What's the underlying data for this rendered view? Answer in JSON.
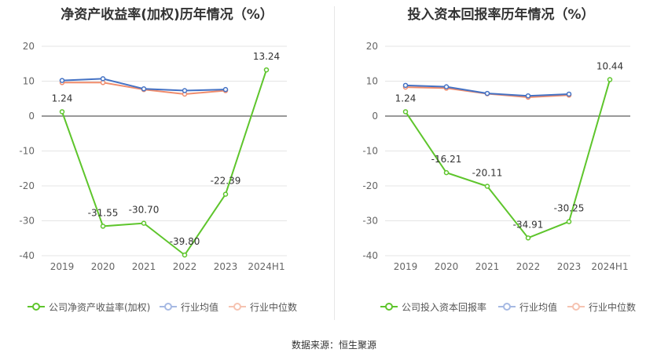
{
  "source_label": "数据来源：恒生聚源",
  "chart_data": [
    {
      "type": "line",
      "title": "净资产收益率(加权)历年情况（%）",
      "categories": [
        "2019",
        "2020",
        "2021",
        "2022",
        "2023",
        "2024H1"
      ],
      "ylim": [
        -40,
        20
      ],
      "yticks": [
        20,
        10,
        0,
        -10,
        -20,
        -30,
        -40
      ],
      "grid": true,
      "legend_position": "bottom",
      "series": [
        {
          "name": "公司净资产收益率(加权)",
          "color": "#5ec52c",
          "values": [
            1.24,
            -31.55,
            -30.7,
            -39.8,
            -22.39,
            13.24
          ],
          "labels": [
            "1.24",
            "-31.55",
            "-30.70",
            "-39.80",
            "-22.39",
            "13.24"
          ]
        },
        {
          "name": "行业均值",
          "color": "#4472c4",
          "values": [
            10.2,
            10.7,
            7.8,
            7.3,
            7.6,
            null
          ],
          "labels": []
        },
        {
          "name": "行业中位数",
          "color": "#f08c6c",
          "values": [
            9.6,
            9.6,
            7.6,
            6.3,
            7.3,
            null
          ],
          "labels": []
        }
      ]
    },
    {
      "type": "line",
      "title": "投入资本回报率历年情况（%）",
      "categories": [
        "2019",
        "2020",
        "2021",
        "2022",
        "2023",
        "2024H1"
      ],
      "ylim": [
        -40,
        20
      ],
      "yticks": [
        20,
        10,
        0,
        -10,
        -20,
        -30,
        -40
      ],
      "grid": true,
      "legend_position": "bottom",
      "series": [
        {
          "name": "公司投入资本回报率",
          "color": "#5ec52c",
          "values": [
            1.24,
            -16.21,
            -20.11,
            -34.91,
            -30.25,
            10.44
          ],
          "labels": [
            "1.24",
            "-16.21",
            "-20.11",
            "-34.91",
            "-30.25",
            "10.44"
          ]
        },
        {
          "name": "行业均值",
          "color": "#4472c4",
          "values": [
            8.8,
            8.4,
            6.5,
            5.8,
            6.3,
            null
          ],
          "labels": []
        },
        {
          "name": "行业中位数",
          "color": "#f08c6c",
          "values": [
            8.3,
            8.0,
            6.4,
            5.4,
            6.0,
            null
          ],
          "labels": []
        }
      ]
    }
  ]
}
